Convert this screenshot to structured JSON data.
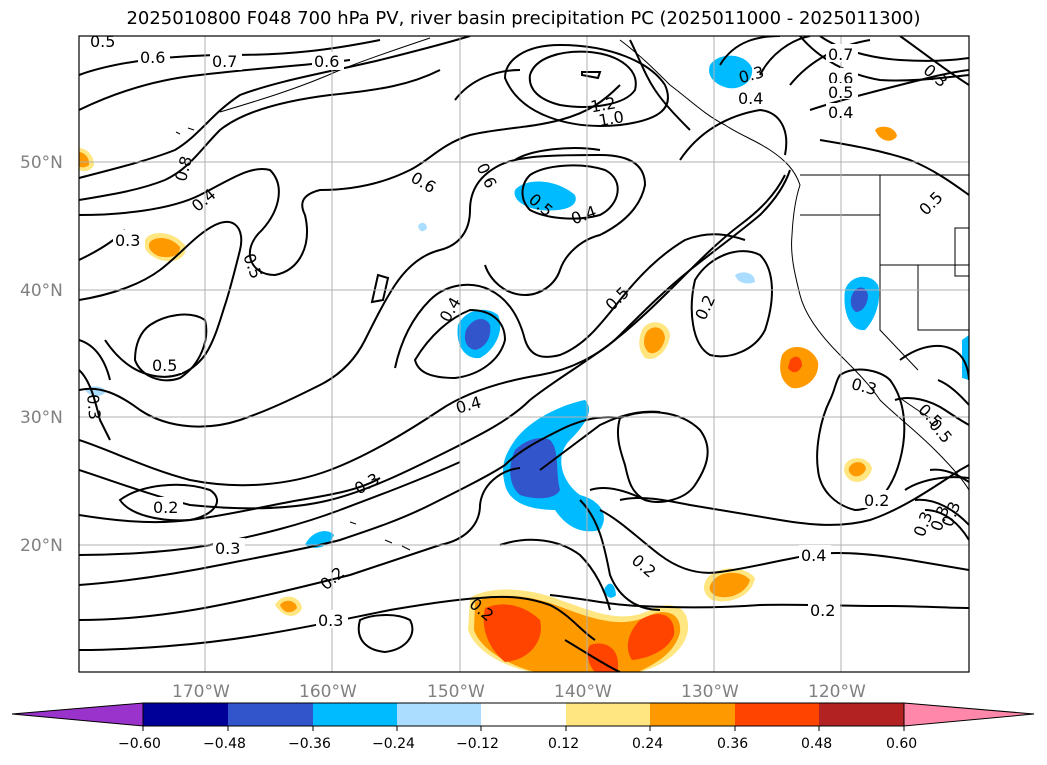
{
  "title": "2025010800 F048 700 hPa PV, river basin precipitation PC (2025011000 - 2025011300)",
  "lat_labels": [
    "50°N",
    "40°N",
    "30°N",
    "20°N"
  ],
  "lon_labels": [
    "170°W",
    "160°W",
    "150°W",
    "140°W",
    "130°W",
    "120°W"
  ],
  "contour_labels": [
    "0.5",
    "0.6",
    "0.7",
    "0.6",
    "0.8",
    "0.4",
    "0.3",
    "0.5",
    "0.5",
    "0.3",
    "0.2",
    "0.3",
    "0.3",
    "0.2",
    "0.3",
    "0.4",
    "0.4",
    "0.6",
    "0.6",
    "0.5",
    "0.4",
    "1.2",
    "1.0",
    "0.5",
    "0.2",
    "0.2",
    "0.2",
    "0.4",
    "0.2",
    "0.3",
    "0.7",
    "0.6",
    "0.5",
    "0.4",
    "0.3",
    "0.4",
    "0.5",
    "0.3",
    "0.5",
    "0.2",
    "0.3",
    "0.3",
    "0.3",
    "0.5"
  ],
  "colorbar": {
    "colors": [
      "#9933cc",
      "#000099",
      "#3355cc",
      "#00bbff",
      "#aaddff",
      "#ffffff",
      "#ffe680",
      "#ff9900",
      "#ff4400",
      "#b22222",
      "#ff88aa"
    ],
    "tick_labels": [
      "−0.60",
      "−0.48",
      "−0.36",
      "−0.24",
      "−0.12",
      "0.12",
      "0.24",
      "0.36",
      "0.48",
      "0.60"
    ]
  }
}
